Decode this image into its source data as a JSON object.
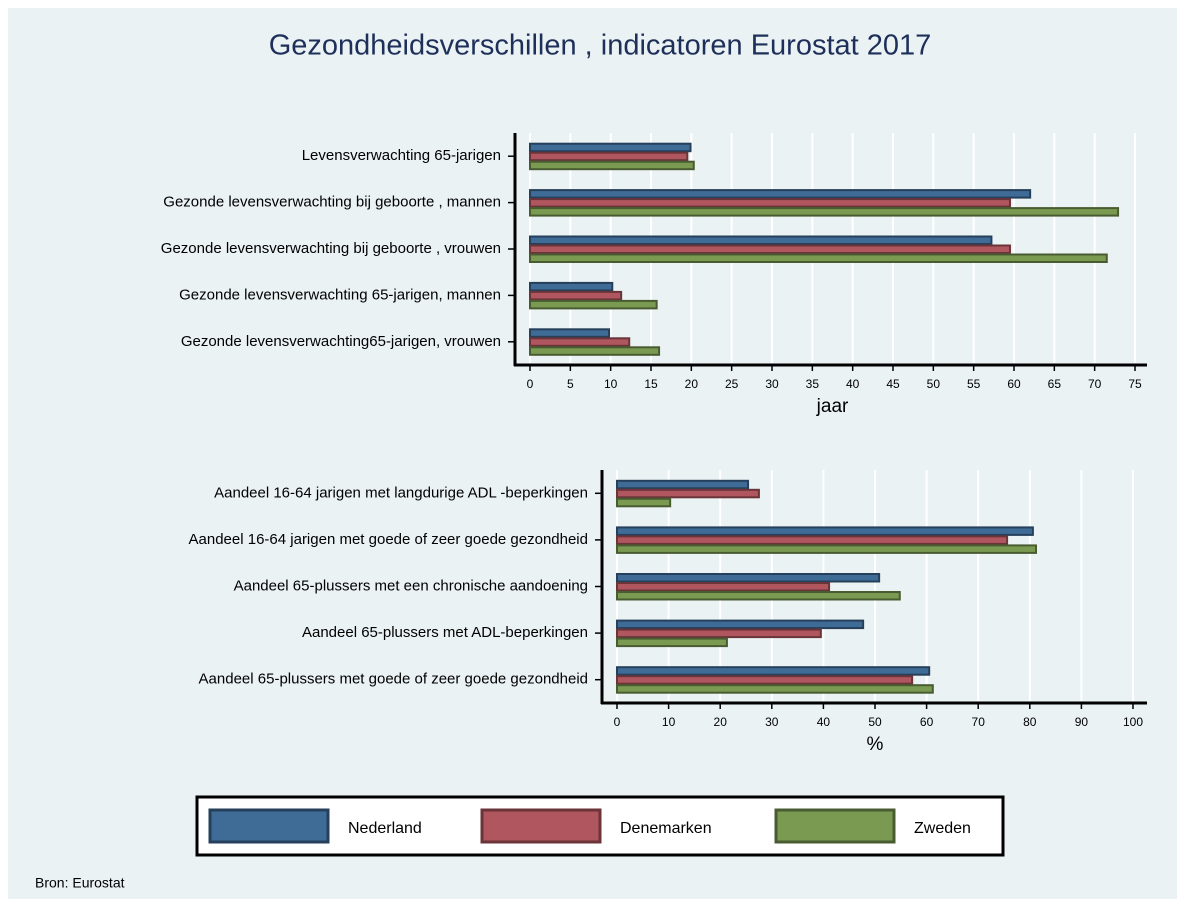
{
  "title": "Gezondheidsverschillen , indicatoren Eurostat 2017",
  "source": "Bron: Eurostat",
  "chart_data": [
    {
      "type": "barh",
      "xlabel": "jaar",
      "categories": [
        "Levensverwachting  65-jarigen",
        "Gezonde levensverwachting bij geboorte  , mannen",
        "Gezonde levensverwachting bij geboorte , vrouwen",
        "Gezonde levensverwachting 65-jarigen, mannen",
        "Gezonde levensverwachting65-jarigen, vrouwen"
      ],
      "series": [
        {
          "name": "Nederland",
          "color": "#3f6b97",
          "values": [
            19.9,
            62.0,
            57.2,
            10.2,
            9.8
          ]
        },
        {
          "name": "Denemarken",
          "color": "#b0565f",
          "values": [
            19.5,
            59.5,
            59.5,
            11.3,
            12.3
          ]
        },
        {
          "name": "Zweden",
          "color": "#7a9a52",
          "values": [
            20.3,
            72.9,
            71.5,
            15.7,
            16.0
          ]
        }
      ],
      "xlim": [
        0,
        75
      ],
      "xticks": [
        0,
        5,
        10,
        15,
        20,
        25,
        30,
        35,
        40,
        45,
        50,
        55,
        60,
        65,
        70,
        75
      ],
      "grid": true
    },
    {
      "type": "barh",
      "xlabel": "%",
      "categories": [
        "Aandeel 16-64 jarigen met langdurige ADL  -beperkingen",
        "Aandeel 16-64 jarigen met goede of zeer goede gezondheid",
        "Aandeel 65-plussers met een chronische aandoening",
        "Aandeel 65-plussers met ADL-beperkingen",
        "Aandeel 65-plussers met goede of zeer goede gezondheid"
      ],
      "series": [
        {
          "name": "Nederland",
          "color": "#3f6b97",
          "values": [
            25.4,
            80.6,
            50.8,
            47.7,
            60.5
          ]
        },
        {
          "name": "Denemarken",
          "color": "#b0565f",
          "values": [
            27.5,
            75.6,
            41.1,
            39.5,
            57.2
          ]
        },
        {
          "name": "Zweden",
          "color": "#7a9a52",
          "values": [
            10.3,
            81.2,
            54.8,
            21.3,
            61.2
          ]
        }
      ],
      "xlim": [
        0,
        100
      ],
      "xticks": [
        0,
        10,
        20,
        30,
        40,
        50,
        60,
        70,
        80,
        90,
        100
      ],
      "grid": true
    }
  ]
}
